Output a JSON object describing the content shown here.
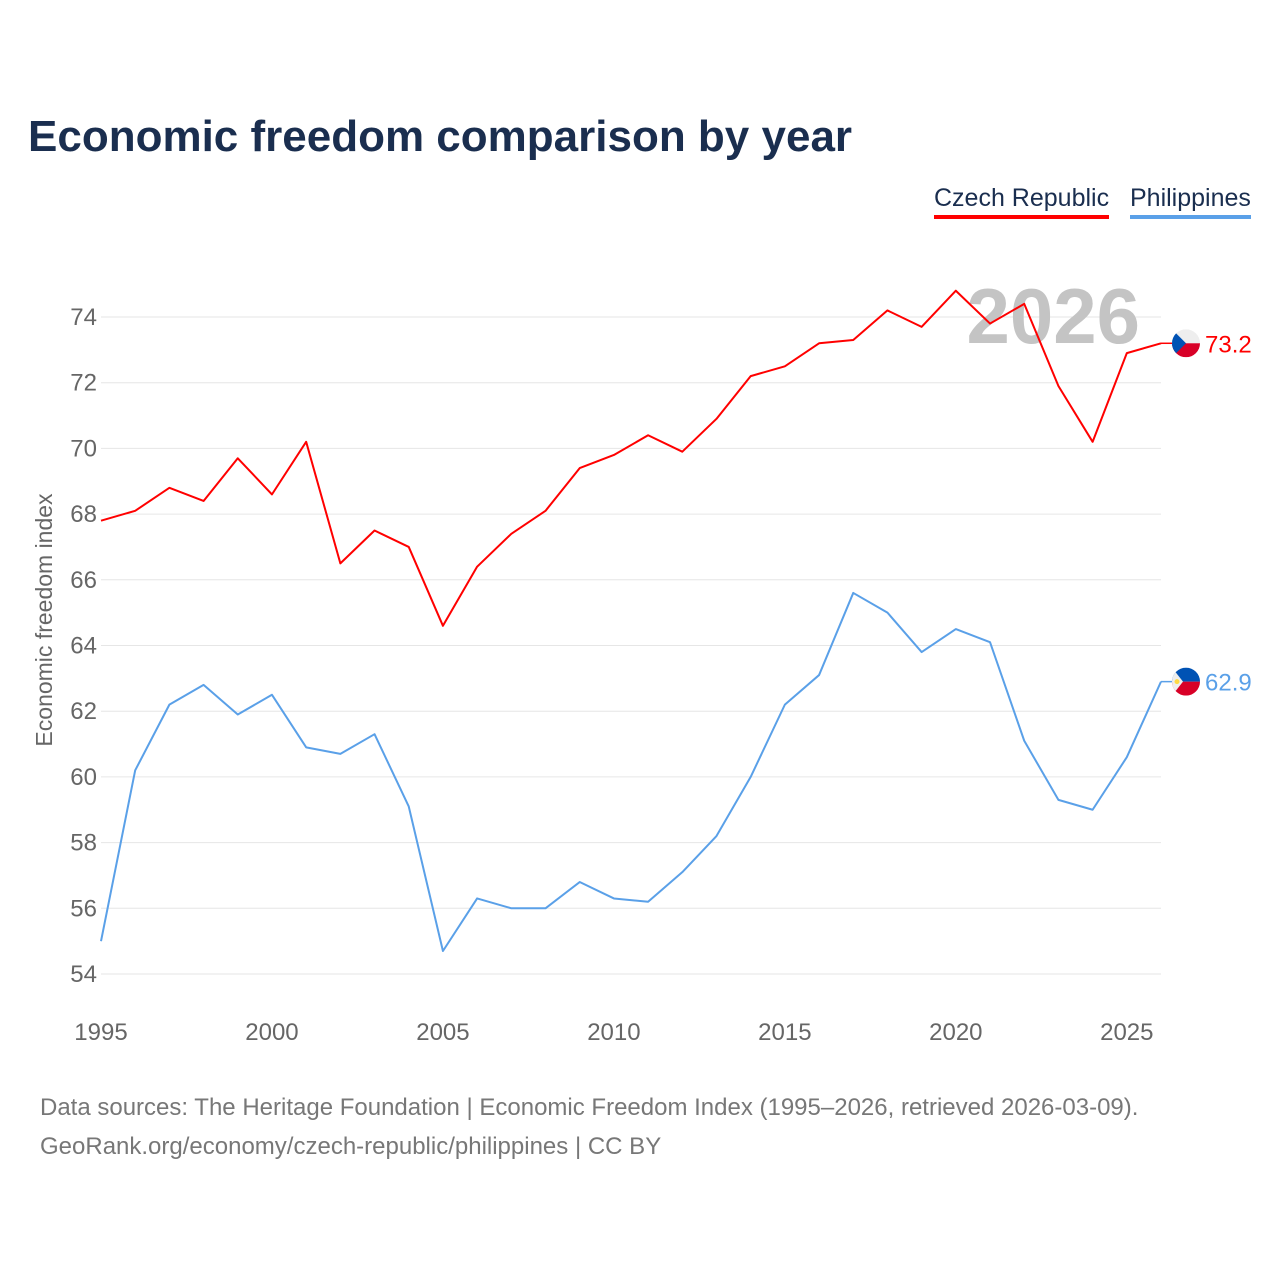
{
  "title": "Economic freedom comparison by year",
  "legend": [
    {
      "name": "Czech Republic",
      "color": "#ff0000"
    },
    {
      "name": "Philippines",
      "color": "#5aa0e8"
    }
  ],
  "source": {
    "line1": "Data sources: The Heritage Foundation | Economic Freedom Index (1995–2026, retrieved 2026-03-09).",
    "line2": "GeoRank.org/economy/czech-republic/philippines | CC BY"
  },
  "chart_data": {
    "type": "line",
    "title": "Economic freedom comparison by year",
    "ylabel": "Economic freedom index",
    "xlabel": "",
    "year_watermark": "2026",
    "ylim": [
      53,
      75.5
    ],
    "xlim": [
      1995,
      2026
    ],
    "yticks": [
      54,
      56,
      58,
      60,
      62,
      64,
      66,
      68,
      70,
      72,
      74
    ],
    "xticks": [
      1995,
      2000,
      2005,
      2010,
      2015,
      2020,
      2025
    ],
    "grid": true,
    "legend_position": "top-right",
    "x": [
      1995,
      1996,
      1997,
      1998,
      1999,
      2000,
      2001,
      2002,
      2003,
      2004,
      2005,
      2006,
      2007,
      2008,
      2009,
      2010,
      2011,
      2012,
      2013,
      2014,
      2015,
      2016,
      2017,
      2018,
      2019,
      2020,
      2021,
      2022,
      2023,
      2024,
      2025,
      2026
    ],
    "series": [
      {
        "name": "Czech Republic",
        "color": "#ff0000",
        "end_label": "73.2",
        "flag": "cz",
        "values": [
          67.8,
          68.1,
          68.8,
          68.4,
          69.7,
          68.6,
          70.2,
          66.5,
          67.5,
          67.0,
          64.6,
          66.4,
          67.4,
          68.1,
          69.4,
          69.8,
          70.4,
          69.9,
          70.9,
          72.2,
          72.5,
          73.2,
          73.3,
          74.2,
          73.7,
          74.8,
          73.8,
          74.4,
          71.9,
          70.2,
          72.9,
          73.2
        ]
      },
      {
        "name": "Philippines",
        "color": "#5aa0e8",
        "end_label": "62.9",
        "flag": "ph",
        "values": [
          55.0,
          60.2,
          62.2,
          62.8,
          61.9,
          62.5,
          60.9,
          60.7,
          61.3,
          59.1,
          54.7,
          56.3,
          56.0,
          56.0,
          56.8,
          56.3,
          56.2,
          57.1,
          58.2,
          60.0,
          62.2,
          63.1,
          65.6,
          65.0,
          63.8,
          64.5,
          64.1,
          61.1,
          59.3,
          59.0,
          60.6,
          62.9
        ]
      }
    ]
  }
}
